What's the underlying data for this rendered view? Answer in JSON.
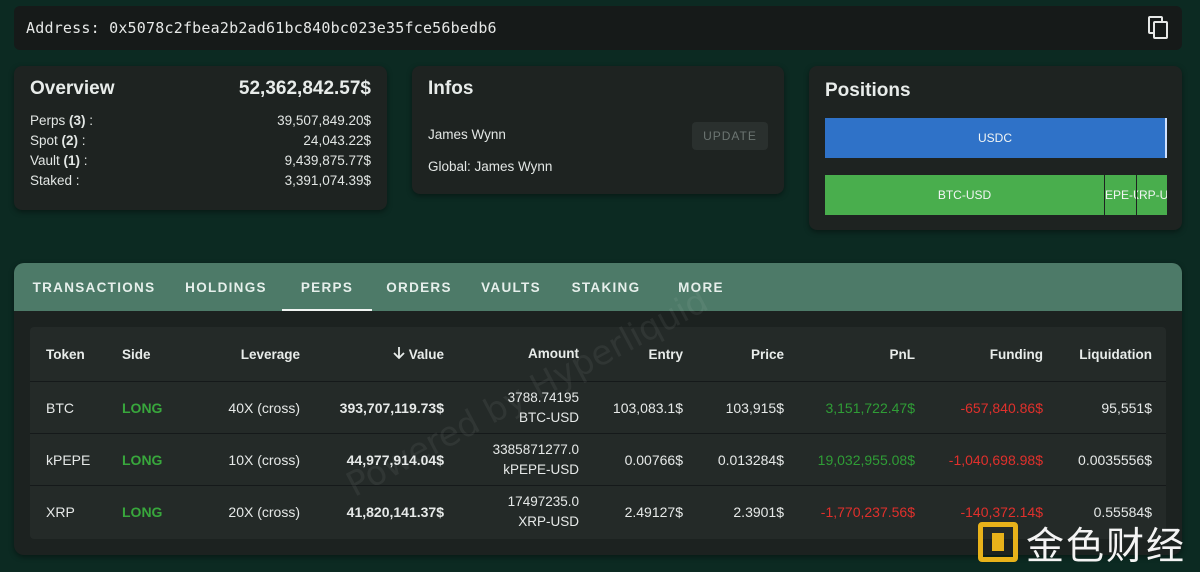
{
  "address": {
    "label": "Address:",
    "value": "0x5078c2fbea2b2ad61bc840bc023e35fce56bedb6",
    "copy_icon": "copy-icon"
  },
  "overview": {
    "title": "Overview",
    "total": "52,362,842.57$",
    "rows": [
      {
        "label": "Perps",
        "count": "(3)",
        "suffix": " :",
        "value": "39,507,849.20$"
      },
      {
        "label": "Spot",
        "count": "(2)",
        "suffix": " :",
        "value": "24,043.22$"
      },
      {
        "label": "Vault",
        "count": "(1)",
        "suffix": " :",
        "value": "9,439,875.77$"
      },
      {
        "label": "Staked",
        "count": "",
        "suffix": " :",
        "value": "3,391,074.39$"
      }
    ]
  },
  "infos": {
    "title": "Infos",
    "name": "James Wynn",
    "global": "Global: James Wynn",
    "update_label": "UPDATE"
  },
  "positions": {
    "title": "Positions",
    "bars": {
      "usdc": "USDC",
      "btc": "BTC-USD",
      "kpepe": "kPEPE-USD",
      "xrp": "XRP-USD"
    },
    "colors": {
      "usdc": "#2f72c8",
      "perp": "#49ae4d"
    }
  },
  "tabs": [
    "TRANSACTIONS",
    "HOLDINGS",
    "PERPS",
    "ORDERS",
    "VAULTS",
    "STAKING",
    "MORE"
  ],
  "active_tab": "PERPS",
  "table": {
    "headers": {
      "token": "Token",
      "side": "Side",
      "leverage": "Leverage",
      "value": "Value",
      "amount": "Amount",
      "entry": "Entry",
      "price": "Price",
      "pnl": "PnL",
      "funding": "Funding",
      "liquidation": "Liquidation"
    },
    "sort_icon": "arrow-down-icon",
    "rows": [
      {
        "token": "BTC",
        "side": "LONG",
        "leverage": "40X (cross)",
        "value": "393,707,119.73$",
        "amount": "3788.74195",
        "amount_unit": "BTC-USD",
        "entry": "103,083.1$",
        "price": "103,915$",
        "pnl": "3,151,722.47$",
        "funding": "-657,840.86$",
        "liquidation": "95,551$"
      },
      {
        "token": "kPEPE",
        "side": "LONG",
        "leverage": "10X (cross)",
        "value": "44,977,914.04$",
        "amount": "3385871277.0",
        "amount_unit": "kPEPE-USD",
        "entry": "0.00766$",
        "price": "0.013284$",
        "pnl": "19,032,955.08$",
        "funding": "-1,040,698.98$",
        "liquidation": "0.0035556$"
      },
      {
        "token": "XRP",
        "side": "LONG",
        "leverage": "20X (cross)",
        "value": "41,820,141.37$",
        "amount": "17497235.0",
        "amount_unit": "XRP-USD",
        "entry": "2.49127$",
        "price": "2.3901$",
        "pnl": "-1,770,237.56$",
        "funding": "-140,372.14$",
        "liquidation": "0.55584$"
      }
    ]
  },
  "watermark": "Powered by Hyperliquid",
  "logo_text": "金色财经"
}
